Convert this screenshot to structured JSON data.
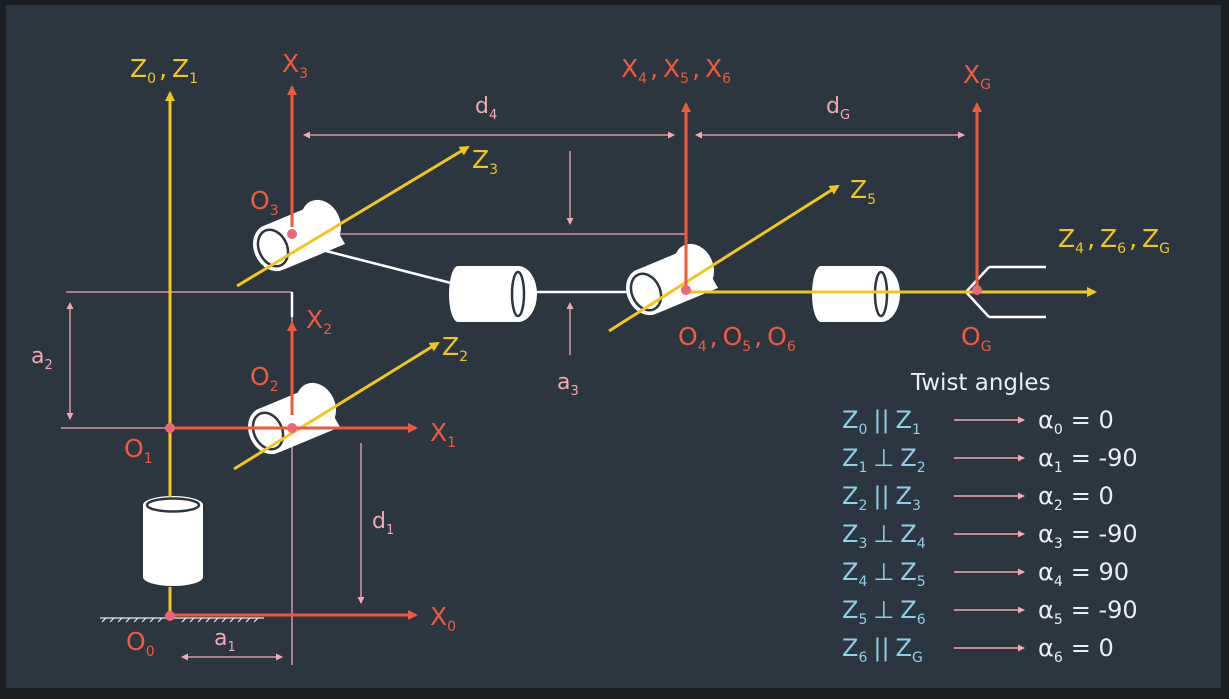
{
  "colors": {
    "background": "#2c3640",
    "z_axis": "#f2c61e",
    "x_axis": "#f05a3c",
    "dimension": "#f4a6b4",
    "origin_dot": "#f06478",
    "link": "#ffffff",
    "twist_text": "#8fd0e6",
    "light_text": "#e8eef2"
  },
  "labels": {
    "z0": "Z",
    "z0_sub": "0",
    "z1": "Z",
    "z1_sub": "1",
    "x3": "X",
    "x3_sub": "3",
    "x4": "X",
    "x4_sub": "4",
    "x5": "X",
    "x5_sub": "5",
    "x6": "X",
    "x6_sub": "6",
    "xg": "X",
    "xg_sub": "G",
    "d4": "d",
    "d4_sub": "4",
    "dg": "d",
    "dg_sub": "G",
    "z3": "Z",
    "z3_sub": "3",
    "z5": "Z",
    "z5_sub": "5",
    "z4": "Z",
    "z4_sub": "4",
    "z6": "Z",
    "z6_sub": "6",
    "zg": "Z",
    "zg_sub": "G",
    "o3": "O",
    "o3_sub": "3",
    "x2": "X",
    "x2_sub": "2",
    "z2": "Z",
    "z2_sub": "2",
    "o2": "O",
    "o2_sub": "2",
    "a2": "a",
    "a2_sub": "2",
    "a3": "a",
    "a3_sub": "3",
    "o4": "O",
    "o4_sub": "4",
    "o5": "O",
    "o5_sub": "5",
    "o6": "O",
    "o6_sub": "6",
    "og": "O",
    "og_sub": "G",
    "o1": "O",
    "o1_sub": "1",
    "x1": "X",
    "x1_sub": "1",
    "d1": "d",
    "d1_sub": "1",
    "x0": "X",
    "x0_sub": "0",
    "o0": "O",
    "o0_sub": "0",
    "a1": "a",
    "a1_sub": "1",
    "comma": ","
  },
  "twist": {
    "title": "Twist angles",
    "axis_letter": "Z",
    "alpha_letter": "α",
    "rows": [
      {
        "a": "0",
        "rel": "||",
        "b": "1",
        "alpha": "0",
        "value": "0"
      },
      {
        "a": "1",
        "rel": "⊥",
        "b": "2",
        "alpha": "1",
        "value": "-90"
      },
      {
        "a": "2",
        "rel": "||",
        "b": "3",
        "alpha": "2",
        "value": "0"
      },
      {
        "a": "3",
        "rel": "⊥",
        "b": "4",
        "alpha": "3",
        "value": "-90"
      },
      {
        "a": "4",
        "rel": "⊥",
        "b": "5",
        "alpha": "4",
        "value": "90"
      },
      {
        "a": "5",
        "rel": "⊥",
        "b": "6",
        "alpha": "5",
        "value": "-90"
      },
      {
        "a": "6",
        "rel": "||",
        "b": "G",
        "alpha": "6",
        "value": "0"
      }
    ]
  }
}
